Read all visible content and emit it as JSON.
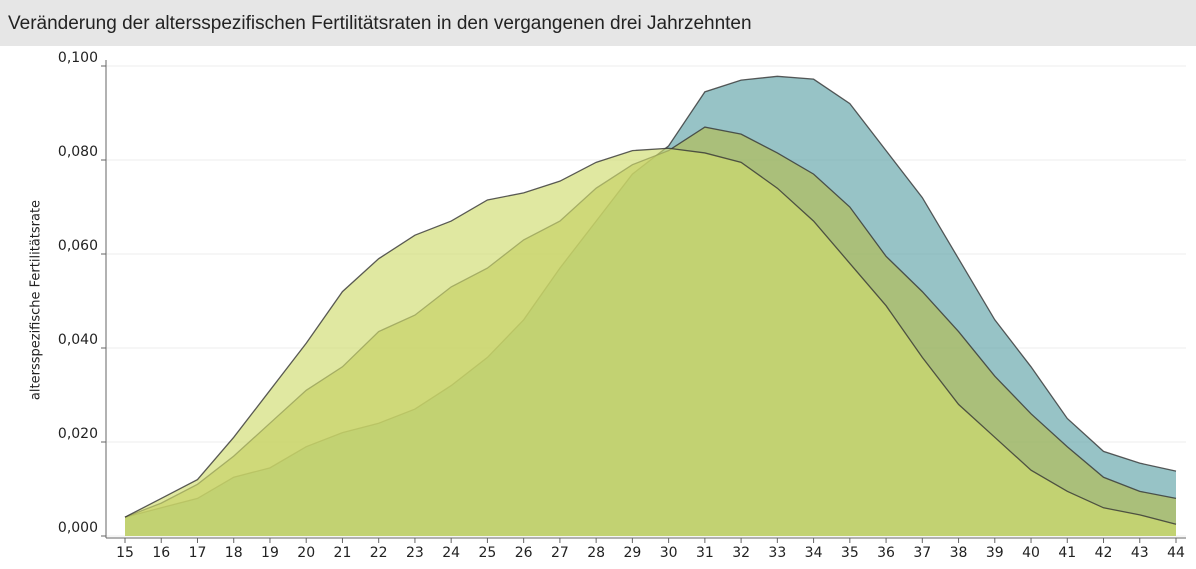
{
  "chart_data": {
    "type": "area",
    "title": "Veränderung der altersspezifischen Fertilitätsraten in den vergangenen drei Jahrzehnten",
    "y_label": "altersspezifische Fertilitätsrate",
    "x": [
      15,
      16,
      17,
      18,
      19,
      20,
      21,
      22,
      23,
      24,
      25,
      26,
      27,
      28,
      29,
      30,
      31,
      32,
      33,
      34,
      35,
      36,
      37,
      38,
      39,
      40,
      41,
      42,
      43,
      44
    ],
    "xlim": [
      15,
      44
    ],
    "ylim": [
      0,
      0.1
    ],
    "yticks": [
      {
        "value": 0,
        "label": "0,000"
      },
      {
        "value": 0.02,
        "label": "0,020"
      },
      {
        "value": 0.04,
        "label": "0,040"
      },
      {
        "value": 0.06,
        "label": "0,060"
      },
      {
        "value": 0.08,
        "label": "0,080"
      },
      {
        "value": 0.1,
        "label": "0,100"
      }
    ],
    "grid": true,
    "series": [
      {
        "color": "#5fa3a8",
        "values": [
          0.004,
          0.006,
          0.008,
          0.0125,
          0.0145,
          0.019,
          0.022,
          0.024,
          0.027,
          0.032,
          0.038,
          0.046,
          0.057,
          0.067,
          0.077,
          0.083,
          0.0945,
          0.097,
          0.0978,
          0.0972,
          0.092,
          0.082,
          0.072,
          0.059,
          0.046,
          0.036,
          0.025,
          0.018,
          0.0155,
          0.0138
        ]
      },
      {
        "color": "#b3bd52",
        "values": [
          0.004,
          0.007,
          0.011,
          0.017,
          0.024,
          0.031,
          0.036,
          0.0435,
          0.047,
          0.053,
          0.057,
          0.063,
          0.067,
          0.074,
          0.079,
          0.082,
          0.087,
          0.0855,
          0.0815,
          0.077,
          0.07,
          0.0595,
          0.052,
          0.0435,
          0.034,
          0.026,
          0.019,
          0.0125,
          0.0095,
          0.008
        ]
      },
      {
        "color": "#cfdc6e",
        "values": [
          0.004,
          0.008,
          0.012,
          0.021,
          0.031,
          0.041,
          0.052,
          0.059,
          0.064,
          0.067,
          0.0715,
          0.073,
          0.0755,
          0.0795,
          0.082,
          0.0825,
          0.0815,
          0.0795,
          0.074,
          0.067,
          0.058,
          0.049,
          0.038,
          0.028,
          0.021,
          0.014,
          0.0095,
          0.006,
          0.0045,
          0.0025
        ]
      }
    ]
  }
}
